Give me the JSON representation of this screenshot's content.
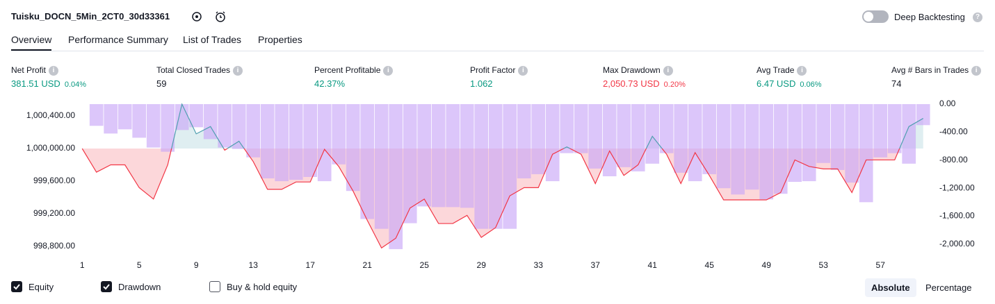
{
  "header": {
    "title": "Tuisku_DOCN_5Min_2CT0_30d33361",
    "toggle_label": "Deep Backtesting"
  },
  "tabs": [
    "Overview",
    "Performance Summary",
    "List of Trades",
    "Properties"
  ],
  "metrics": [
    {
      "label": "Net Profit",
      "value": "381.51 USD",
      "percent": "0.04%",
      "color": "#089981"
    },
    {
      "label": "Total Closed Trades",
      "value": "59",
      "color": "#131722"
    },
    {
      "label": "Percent Profitable",
      "value": "42.37%",
      "color": "#089981"
    },
    {
      "label": "Profit Factor",
      "value": "1.062",
      "color": "#089981"
    },
    {
      "label": "Max Drawdown",
      "value": "2,050.73 USD",
      "percent": "0.20%",
      "color": "#f23645"
    },
    {
      "label": "Avg Trade",
      "value": "6.47 USD",
      "percent": "0.06%",
      "color": "#089981"
    },
    {
      "label": "Avg # Bars in Trades",
      "value": "74",
      "color": "#131722"
    }
  ],
  "chart_data": {
    "type": "combo",
    "x": [
      1,
      2,
      3,
      4,
      5,
      6,
      7,
      8,
      9,
      10,
      11,
      12,
      13,
      14,
      15,
      16,
      17,
      18,
      19,
      20,
      21,
      22,
      23,
      24,
      25,
      26,
      27,
      28,
      29,
      30,
      31,
      32,
      33,
      34,
      35,
      36,
      37,
      38,
      39,
      40,
      41,
      42,
      43,
      44,
      45,
      46,
      47,
      48,
      49,
      50,
      51,
      52,
      53,
      54,
      55,
      56,
      57,
      58,
      59,
      60
    ],
    "xlim": [
      0.6,
      60.6
    ],
    "xticks": [
      1,
      5,
      9,
      13,
      17,
      21,
      25,
      29,
      33,
      37,
      41,
      45,
      49,
      53,
      57
    ],
    "ylim": [
      998740,
      1000545
    ],
    "yticks": [
      {
        "value": 998800,
        "label": "998,800.00"
      },
      {
        "value": 999200,
        "label": "999,200.00"
      },
      {
        "value": 999600,
        "label": "999,600.00"
      },
      {
        "value": 1000000,
        "label": "1,000,000.00"
      },
      {
        "value": 1000400,
        "label": "1,000,400.00"
      }
    ],
    "y2lim": [
      -2100,
      0
    ],
    "y2ticks": [
      {
        "value": 0,
        "label": "0.00"
      },
      {
        "value": -400,
        "label": "-400.00"
      },
      {
        "value": -800,
        "label": "-800.00"
      },
      {
        "value": -1200,
        "label": "-1,200.00"
      },
      {
        "value": -1600,
        "label": "-1,600.00"
      },
      {
        "value": -2000,
        "label": "-2,000.00"
      }
    ],
    "series": [
      {
        "name": "Equity",
        "type": "line",
        "color": "#f23645",
        "color_above": "#4f9fb0",
        "values": [
          1000000,
          999710,
          999800,
          999800,
          999520,
          999380,
          999800,
          1000545,
          1000180,
          1000270,
          999980,
          1000090,
          999840,
          999500,
          999500,
          999590,
          999590,
          999990,
          999780,
          999480,
          999120,
          998780,
          998900,
          999270,
          999380,
          999080,
          999080,
          999180,
          998910,
          999030,
          999420,
          999520,
          999520,
          999930,
          1000020,
          999930,
          999570,
          999970,
          999670,
          999800,
          1000150,
          999930,
          999570,
          999950,
          999670,
          999370,
          999370,
          999370,
          999370,
          999460,
          999860,
          999780,
          999750,
          999750,
          999460,
          999860,
          999860,
          999860,
          1000270,
          1000370
        ]
      },
      {
        "name": "Drawdown",
        "type": "bar",
        "axis": "y2",
        "color": "#c9a7f7",
        "values": [
          0,
          -310,
          -420,
          -360,
          -480,
          -620,
          -680,
          -370,
          -330,
          -500,
          -620,
          -640,
          -760,
          -1060,
          -1100,
          -1080,
          -1040,
          -1100,
          -860,
          -1240,
          -1640,
          -1780,
          -2070,
          -1700,
          -1460,
          -1470,
          -1470,
          -1480,
          -1780,
          -1780,
          -1780,
          -1060,
          -1000,
          -1100,
          -700,
          -700,
          -920,
          -1030,
          -900,
          -960,
          -850,
          -700,
          -980,
          -1100,
          -1000,
          -1200,
          -1290,
          -1220,
          -1360,
          -1280,
          -1110,
          -1100,
          -840,
          -940,
          -1120,
          -1400,
          -760,
          -700,
          -850,
          -300
        ]
      }
    ]
  },
  "controls": {
    "extra_series": "Buy & hold equity",
    "modes": [
      "Absolute",
      "Percentage"
    ]
  }
}
